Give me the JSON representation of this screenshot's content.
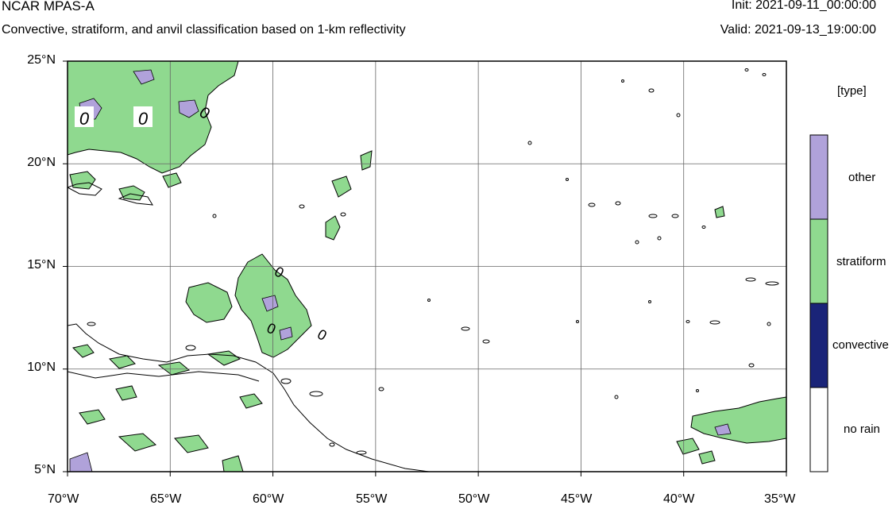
{
  "header": {
    "title": "NCAR MPAS-A",
    "subtitle": "Convective, stratiform, and anvil classification based on 1-km reflectivity",
    "init": "Init: 2021-09-11_00:00:00",
    "valid": "Valid: 2021-09-13_19:00:00"
  },
  "map": {
    "lat_labels": [
      "25°N",
      "20°N",
      "15°N",
      "10°N",
      "5°N"
    ],
    "lon_labels": [
      "70°W",
      "65°W",
      "60°W",
      "55°W",
      "50°W",
      "45°W",
      "40°W",
      "35°W"
    ],
    "contour_labels": [
      "0",
      "0",
      "0",
      "0",
      "0",
      "0"
    ],
    "lat_range": [
      5,
      25
    ],
    "lon_range": [
      -70,
      -35
    ],
    "grid": true
  },
  "legend": {
    "title": "[type]",
    "items": [
      {
        "label": "other",
        "color": "#b0a2da"
      },
      {
        "label": "stratiform",
        "color": "#8fd98f"
      },
      {
        "label": "convective",
        "color": "#1a2478"
      },
      {
        "label": "no rain",
        "color": "#ffffff"
      }
    ]
  },
  "colors": {
    "stratiform": "#8fd98f",
    "other": "#b0a2da",
    "convective": "#1a2478",
    "coast": "#000000",
    "grid": "#666666"
  }
}
